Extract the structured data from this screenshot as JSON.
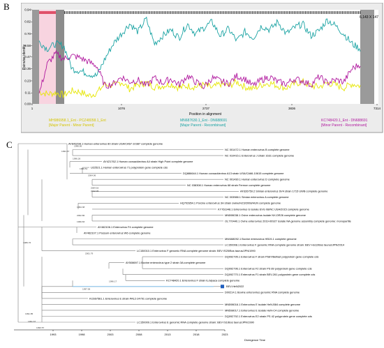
{
  "panel_b": {
    "label": "B",
    "chart_data": {
      "type": "line",
      "title": "",
      "xlabel": "Position in alignment",
      "ylabel": "Pairwise identity",
      "xticks": [
        "1",
        "1076",
        "2737",
        "3836",
        "7314"
      ],
      "yticks": [
        "0.00",
        "0.11",
        "0.23",
        "0.35",
        "0.47",
        "0.58",
        "0.70",
        "0.82",
        "0.94"
      ],
      "ylim": [
        0,
        0.94
      ],
      "corner_label": "6,143 X 147",
      "series": [
        {
          "name": "MH986958.1_Ent - PCZ48058.1_Ent",
          "color": "#e6e600",
          "values": [
            0.12,
            0.1,
            0.11,
            0.09,
            0.13,
            0.12,
            0.08,
            0.11,
            0.2,
            0.18,
            0.22,
            0.15,
            0.19,
            0.21,
            0.17,
            0.18,
            0.2,
            0.16,
            0.18,
            0.17,
            0.19,
            0.16,
            0.2,
            0.18,
            0.22,
            0.17,
            0.15,
            0.19,
            0.21,
            0.18,
            0.16,
            0.2,
            0.22,
            0.18,
            0.17,
            0.21,
            0.19,
            0.16,
            0.2,
            0.18
          ]
        },
        {
          "name": "MN687630.1_Ent - DN688691",
          "color": "#1aa3a3",
          "values": [
            0.62,
            0.55,
            0.6,
            0.58,
            0.35,
            0.33,
            0.3,
            0.28,
            0.45,
            0.6,
            0.7,
            0.8,
            0.72,
            0.85,
            0.6,
            0.68,
            0.74,
            0.66,
            0.8,
            0.7,
            0.76,
            0.82,
            0.68,
            0.75,
            0.63,
            0.72,
            0.66,
            0.78,
            0.74,
            0.82,
            0.7,
            0.76,
            0.8,
            0.68,
            0.73,
            0.84,
            0.78,
            0.7,
            0.6,
            0.55
          ]
        },
        {
          "name": "KC748420.1_Ent - DN688691",
          "color": "#b0189e",
          "values": [
            0.1,
            0.4,
            0.5,
            0.45,
            0.48,
            0.46,
            0.42,
            0.38,
            0.18,
            0.2,
            0.27,
            0.22,
            0.24,
            0.18,
            0.26,
            0.21,
            0.25,
            0.19,
            0.28,
            0.22,
            0.17,
            0.26,
            0.23,
            0.2,
            0.28,
            0.25,
            0.18,
            0.24,
            0.27,
            0.22,
            0.2,
            0.25,
            0.23,
            0.19,
            0.27,
            0.21,
            0.24,
            0.22,
            0.35,
            0.4
          ]
        }
      ],
      "legend": [
        {
          "line1": "MH986958.1_Ent - PCZ48058.1_Ent",
          "line2": "[Major Parent - Minor Parent]",
          "color": "#e6e600"
        },
        {
          "line1": "MN687630.1_Ent - DN688691",
          "line2": "[Major Parent - Recombinant]",
          "color": "#1aa3a3"
        },
        {
          "line1": "KC748420.1_Ent - DN688691",
          "line2": "[Minor Parent - Recombinant]",
          "color": "#b0189e"
        }
      ]
    }
  },
  "panel_c": {
    "label": "C",
    "axis_title": "Divergence Time",
    "axis_ticks": [
      "1993",
      "1998",
      "2003",
      "2008",
      "2013",
      "2018",
      "2023"
    ],
    "taxa": [
      "AY843298.1 Human enterovirus 80 strain USA/CA67-10387 complete genome",
      "NC 001472.1 Human enterovirus B complete genome",
      "NC 010415.1 Enterovirus J strain 1631 complete genome",
      "AY421762.1 Human coxsackievirus A4 strain High Point complete genome",
      "U22521.1 Human enterovirus 71 polyprotein gene complete cds",
      "DQ886644.1 Human coxsackievirus A13 strain USA/CA66-10615 complete genome",
      "NC 001430.1 Human enterovirus D complete genome",
      "NC 038308.1 Human enterovirus 68 strain Fermon complete genome",
      "AF326759.2 Simian enterovirus SV4 strain 1715 UWB complete genome",
      "NC 003988.1 Simian enterovirus A complete genome",
      "HQ702854.1 Porcine enterovirus 3H strain swine/HZ3/2008/HUN complete genome",
      "KY761948.1 Enterovirus G isolate EVG 08/NC USA/2015 complete genome",
      "MN598038.1 Ovine enterovirus isolate NX-DR26 complete genome",
      "OL770440.1 Ovine enterovirus 2019-00927 isolate NA genome assembly complete genome: monopartite",
      "AY462106.1 Enterovirus F4 complete genome",
      "AY462107.1 Possum enterovirus W6 complete genome",
      "MW468092.1 Bovine enterovirus HB19-1 complete genome",
      "LC150008.1 Enterovirus F genomic RNA complete genome strain: BEV Ho12/Bos taurus/JPN/2014",
      "LC150010.1 Enterovirus F genomic RNA complete genome strain: BEV IS25/Bos taurus/JPN/1990",
      "DQ092795.1 Enterovirus F strain PS87/Belfast polyprotein gene complete cds",
      "AY508697.1 Bovine enterovirus type 2 strain 3A complete genome",
      "DQ092796.1 Enterovirus F2 strain PS 89 polyprotein gene complete cds",
      "DQ092770.1 Enterovirus F1 strain BEV-261 polyprotein gene complete cds",
      "KC748420.1 Enterovirus F strain lL/alpaca complete genome",
      "BEV-HeN2022",
      "D00214.1 Bovine enterovirus genomic RNA complete genome",
      "KC667561.1 Enterovirus E strain PA12-24791 complete genome",
      "MN598016.1 Enterovirus E isolate HeN-B84 complete genome",
      "MN598017.1 Enterovirus E isolate HeN-C4 complete genome",
      "DQ092792.1 Enterovirus E2 strain PS 42 polyprotein gene complete cds",
      "LC150009.1 Enterovirus E genomic RNA complete genome strain: BEV IS1/Bos taurus/JPN/1990"
    ],
    "node_labels": [
      "1996.56",
      "1991.67",
      "1996.26",
      "1999.51",
      "2004.06",
      "2004.53",
      "2012.06",
      "1994.38",
      "2002.86",
      "1999.83",
      "1989.76",
      "2001.79",
      "1996.17",
      "1997.06",
      "1991.85",
      "1991.67",
      "1993.57"
    ],
    "highlight": {
      "taxon": "BEV-HeN2022",
      "color": "#1f5fbf"
    }
  }
}
